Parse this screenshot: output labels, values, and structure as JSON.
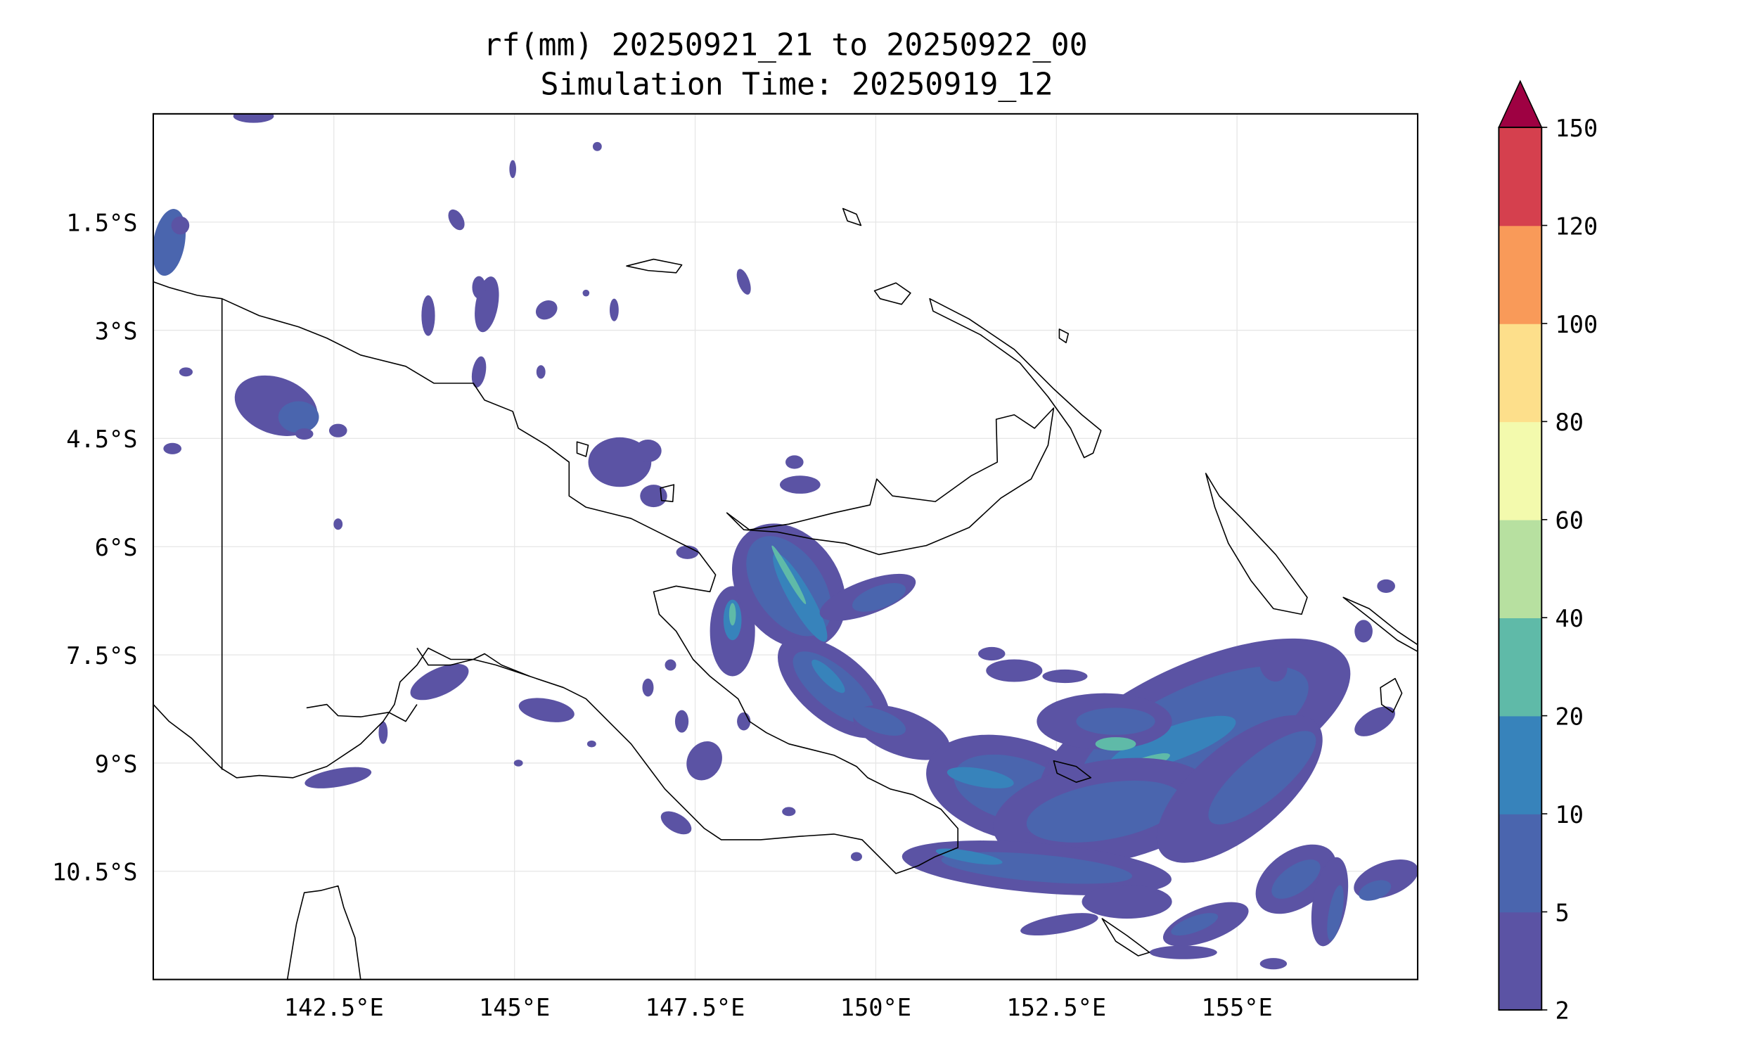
{
  "title": {
    "line1": "rf(mm) 20250921_21 to 20250922_00",
    "line2": "Simulation Time: 20250919_12"
  },
  "chart_data": {
    "type": "heatmap",
    "title": "rf(mm) 20250921_21 to 20250922_00 / Simulation Time: 20250919_12",
    "variable": "rf(mm)",
    "xlabel": "",
    "ylabel": "",
    "x_ticks": [
      "142.5°E",
      "145°E",
      "147.5°E",
      "150°E",
      "152.5°E",
      "155°E"
    ],
    "x_tick_values": [
      142.5,
      145,
      147.5,
      150,
      152.5,
      155
    ],
    "y_ticks": [
      "1.5°S",
      "3°S",
      "4.5°S",
      "6°S",
      "7.5°S",
      "9°S",
      "10.5°S"
    ],
    "y_tick_values": [
      -1.5,
      -3,
      -4.5,
      -6,
      -7.5,
      -9,
      -10.5
    ],
    "xlim": [
      140,
      157.5
    ],
    "ylim": [
      -12,
      0
    ],
    "grid": true,
    "colorbar": {
      "levels": [
        2,
        5,
        10,
        20,
        40,
        60,
        80,
        100,
        120,
        150
      ],
      "tick_labels": [
        "2",
        "5",
        "10",
        "20",
        "40",
        "60",
        "80",
        "100",
        "120",
        "150"
      ],
      "colors": [
        "#5b53a4",
        "#4a65ae",
        "#3783bb",
        "#5fbaa8",
        "#b7e0a0",
        "#f3faad",
        "#fddf8b",
        "#f99a59",
        "#d5404e"
      ],
      "extend_max_color": "#9e0142",
      "placement": "right"
    }
  }
}
